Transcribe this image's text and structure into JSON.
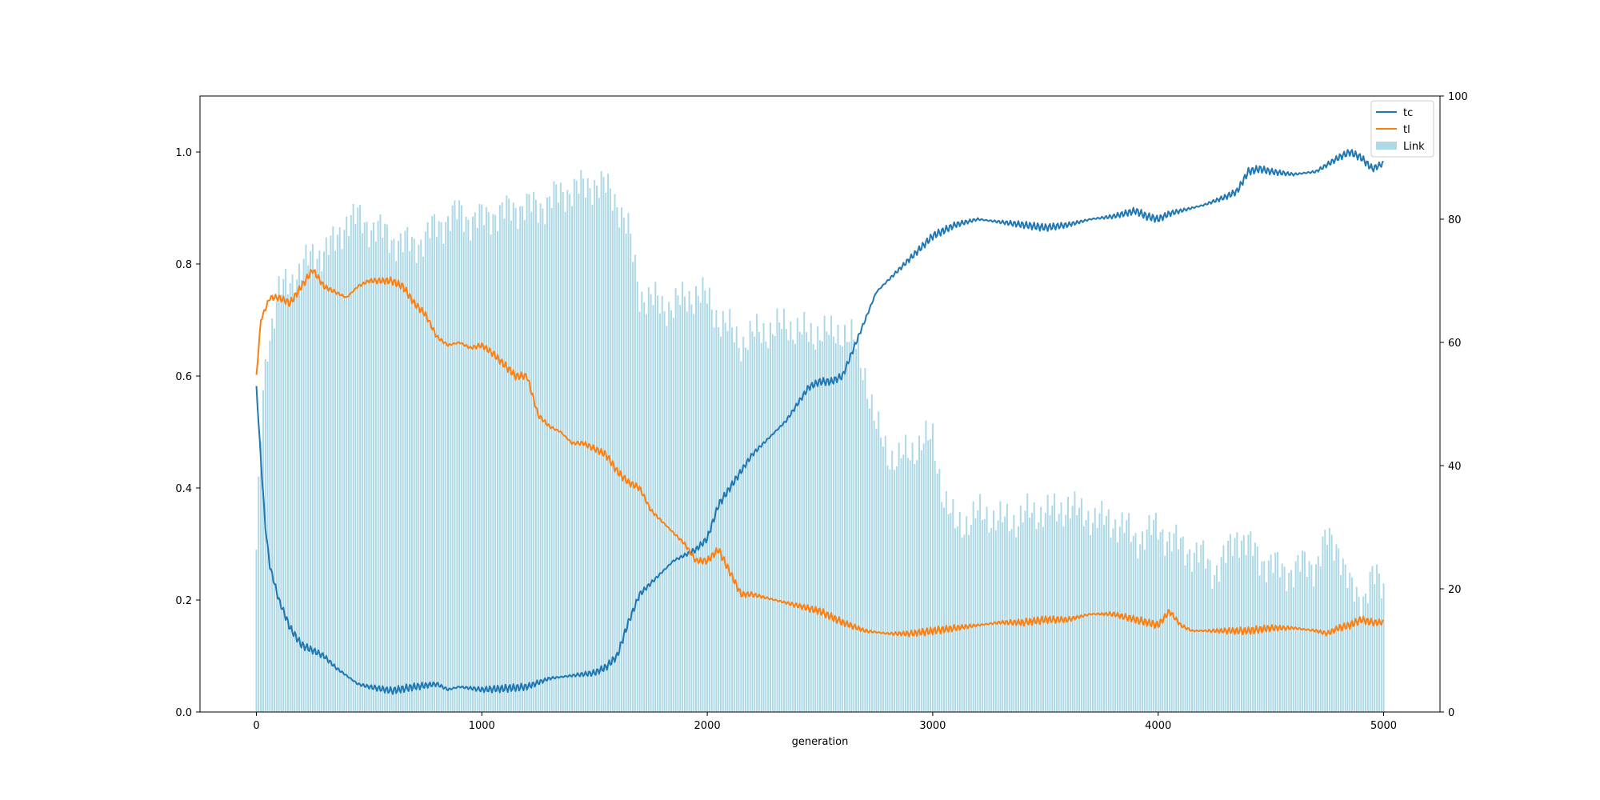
{
  "chart_data": {
    "type": "line",
    "xlabel": "generation",
    "xlim": [
      -250,
      5250
    ],
    "x_ticks": [
      0,
      1000,
      2000,
      3000,
      4000,
      5000
    ],
    "ylim": [
      0,
      1.1
    ],
    "y_ticks": [
      0.0,
      0.2,
      0.4,
      0.6,
      0.8,
      1.0
    ],
    "y_tick_labels": [
      "0.0",
      "0.2",
      "0.4",
      "0.6",
      "0.8",
      "1.0"
    ],
    "y2lim": [
      0,
      100
    ],
    "y2_ticks": [
      0,
      20,
      40,
      60,
      80,
      100
    ],
    "legend_position": "upper right",
    "series": [
      {
        "name": "tc",
        "axis": "left",
        "kind": "line",
        "color": "#1f77b4",
        "points": [
          [
            0,
            0.58
          ],
          [
            20,
            0.45
          ],
          [
            40,
            0.33
          ],
          [
            60,
            0.26
          ],
          [
            100,
            0.2
          ],
          [
            150,
            0.15
          ],
          [
            200,
            0.12
          ],
          [
            250,
            0.11
          ],
          [
            300,
            0.1
          ],
          [
            350,
            0.08
          ],
          [
            400,
            0.065
          ],
          [
            450,
            0.05
          ],
          [
            500,
            0.045
          ],
          [
            600,
            0.038
          ],
          [
            700,
            0.045
          ],
          [
            800,
            0.05
          ],
          [
            850,
            0.04
          ],
          [
            900,
            0.045
          ],
          [
            1000,
            0.04
          ],
          [
            1100,
            0.042
          ],
          [
            1200,
            0.045
          ],
          [
            1300,
            0.06
          ],
          [
            1400,
            0.065
          ],
          [
            1500,
            0.07
          ],
          [
            1550,
            0.08
          ],
          [
            1600,
            0.1
          ],
          [
            1650,
            0.16
          ],
          [
            1700,
            0.21
          ],
          [
            1750,
            0.23
          ],
          [
            1800,
            0.25
          ],
          [
            1850,
            0.27
          ],
          [
            1900,
            0.28
          ],
          [
            1950,
            0.29
          ],
          [
            2000,
            0.31
          ],
          [
            2050,
            0.37
          ],
          [
            2100,
            0.4
          ],
          [
            2150,
            0.43
          ],
          [
            2200,
            0.46
          ],
          [
            2250,
            0.48
          ],
          [
            2300,
            0.5
          ],
          [
            2350,
            0.52
          ],
          [
            2400,
            0.55
          ],
          [
            2450,
            0.58
          ],
          [
            2500,
            0.59
          ],
          [
            2550,
            0.59
          ],
          [
            2600,
            0.6
          ],
          [
            2650,
            0.65
          ],
          [
            2700,
            0.7
          ],
          [
            2750,
            0.75
          ],
          [
            2800,
            0.77
          ],
          [
            2850,
            0.79
          ],
          [
            2900,
            0.81
          ],
          [
            2950,
            0.83
          ],
          [
            3000,
            0.85
          ],
          [
            3050,
            0.86
          ],
          [
            3100,
            0.87
          ],
          [
            3200,
            0.88
          ],
          [
            3300,
            0.875
          ],
          [
            3400,
            0.87
          ],
          [
            3500,
            0.865
          ],
          [
            3600,
            0.87
          ],
          [
            3700,
            0.88
          ],
          [
            3800,
            0.885
          ],
          [
            3850,
            0.89
          ],
          [
            3900,
            0.895
          ],
          [
            3950,
            0.885
          ],
          [
            4000,
            0.88
          ],
          [
            4050,
            0.89
          ],
          [
            4100,
            0.895
          ],
          [
            4200,
            0.905
          ],
          [
            4300,
            0.92
          ],
          [
            4350,
            0.93
          ],
          [
            4400,
            0.965
          ],
          [
            4450,
            0.97
          ],
          [
            4500,
            0.965
          ],
          [
            4600,
            0.96
          ],
          [
            4700,
            0.965
          ],
          [
            4800,
            0.99
          ],
          [
            4850,
            1.0
          ],
          [
            4900,
            0.99
          ],
          [
            4950,
            0.97
          ],
          [
            5000,
            0.98
          ]
        ]
      },
      {
        "name": "tl",
        "axis": "left",
        "kind": "line",
        "color": "#ff7f0e",
        "points": [
          [
            0,
            0.6
          ],
          [
            20,
            0.7
          ],
          [
            40,
            0.72
          ],
          [
            60,
            0.74
          ],
          [
            100,
            0.74
          ],
          [
            150,
            0.73
          ],
          [
            200,
            0.76
          ],
          [
            250,
            0.79
          ],
          [
            300,
            0.76
          ],
          [
            350,
            0.75
          ],
          [
            400,
            0.74
          ],
          [
            450,
            0.76
          ],
          [
            500,
            0.77
          ],
          [
            600,
            0.77
          ],
          [
            650,
            0.76
          ],
          [
            700,
            0.73
          ],
          [
            750,
            0.71
          ],
          [
            800,
            0.67
          ],
          [
            850,
            0.655
          ],
          [
            900,
            0.66
          ],
          [
            950,
            0.65
          ],
          [
            1000,
            0.655
          ],
          [
            1050,
            0.64
          ],
          [
            1100,
            0.62
          ],
          [
            1150,
            0.6
          ],
          [
            1200,
            0.6
          ],
          [
            1250,
            0.53
          ],
          [
            1300,
            0.51
          ],
          [
            1350,
            0.5
          ],
          [
            1400,
            0.48
          ],
          [
            1450,
            0.48
          ],
          [
            1500,
            0.47
          ],
          [
            1550,
            0.46
          ],
          [
            1600,
            0.43
          ],
          [
            1650,
            0.41
          ],
          [
            1700,
            0.4
          ],
          [
            1750,
            0.36
          ],
          [
            1800,
            0.34
          ],
          [
            1850,
            0.32
          ],
          [
            1900,
            0.3
          ],
          [
            1950,
            0.27
          ],
          [
            2000,
            0.27
          ],
          [
            2050,
            0.29
          ],
          [
            2100,
            0.25
          ],
          [
            2150,
            0.21
          ],
          [
            2200,
            0.21
          ],
          [
            2300,
            0.2
          ],
          [
            2400,
            0.19
          ],
          [
            2500,
            0.18
          ],
          [
            2600,
            0.16
          ],
          [
            2700,
            0.145
          ],
          [
            2800,
            0.14
          ],
          [
            2900,
            0.14
          ],
          [
            3000,
            0.145
          ],
          [
            3100,
            0.15
          ],
          [
            3200,
            0.155
          ],
          [
            3300,
            0.16
          ],
          [
            3400,
            0.16
          ],
          [
            3500,
            0.165
          ],
          [
            3600,
            0.165
          ],
          [
            3700,
            0.175
          ],
          [
            3800,
            0.175
          ],
          [
            3900,
            0.165
          ],
          [
            4000,
            0.155
          ],
          [
            4050,
            0.18
          ],
          [
            4100,
            0.155
          ],
          [
            4150,
            0.145
          ],
          [
            4200,
            0.145
          ],
          [
            4300,
            0.145
          ],
          [
            4400,
            0.145
          ],
          [
            4500,
            0.15
          ],
          [
            4600,
            0.15
          ],
          [
            4700,
            0.145
          ],
          [
            4750,
            0.14
          ],
          [
            4800,
            0.15
          ],
          [
            4850,
            0.155
          ],
          [
            4900,
            0.165
          ],
          [
            4950,
            0.16
          ],
          [
            5000,
            0.16
          ]
        ]
      },
      {
        "name": "Link",
        "axis": "right",
        "kind": "bar",
        "color": "#add8e6",
        "points": [
          [
            0,
            25
          ],
          [
            25,
            50
          ],
          [
            50,
            60
          ],
          [
            100,
            68
          ],
          [
            150,
            70
          ],
          [
            200,
            72
          ],
          [
            250,
            74
          ],
          [
            300,
            75
          ],
          [
            350,
            76
          ],
          [
            400,
            80
          ],
          [
            450,
            80
          ],
          [
            500,
            79
          ],
          [
            550,
            78
          ],
          [
            600,
            77
          ],
          [
            650,
            76
          ],
          [
            700,
            76
          ],
          [
            750,
            77
          ],
          [
            800,
            79
          ],
          [
            850,
            80
          ],
          [
            900,
            81
          ],
          [
            950,
            80
          ],
          [
            1000,
            80
          ],
          [
            1050,
            81
          ],
          [
            1100,
            81
          ],
          [
            1150,
            82
          ],
          [
            1200,
            82
          ],
          [
            1250,
            82
          ],
          [
            1300,
            83
          ],
          [
            1350,
            84
          ],
          [
            1400,
            85
          ],
          [
            1450,
            85
          ],
          [
            1500,
            86
          ],
          [
            1550,
            85
          ],
          [
            1600,
            83
          ],
          [
            1650,
            78
          ],
          [
            1700,
            68
          ],
          [
            1750,
            67
          ],
          [
            1800,
            66
          ],
          [
            1850,
            66
          ],
          [
            1900,
            67
          ],
          [
            1950,
            68
          ],
          [
            2000,
            67
          ],
          [
            2050,
            64
          ],
          [
            2100,
            62
          ],
          [
            2150,
            60
          ],
          [
            2200,
            61
          ],
          [
            2250,
            62
          ],
          [
            2300,
            62
          ],
          [
            2350,
            63
          ],
          [
            2400,
            62
          ],
          [
            2450,
            61
          ],
          [
            2500,
            62
          ],
          [
            2550,
            61
          ],
          [
            2600,
            62
          ],
          [
            2650,
            60
          ],
          [
            2700,
            55
          ],
          [
            2750,
            46
          ],
          [
            2800,
            42
          ],
          [
            2850,
            41
          ],
          [
            2900,
            42
          ],
          [
            2950,
            44
          ],
          [
            3000,
            44
          ],
          [
            3050,
            35
          ],
          [
            3100,
            30
          ],
          [
            3150,
            31
          ],
          [
            3200,
            32
          ],
          [
            3250,
            32
          ],
          [
            3300,
            31
          ],
          [
            3350,
            31
          ],
          [
            3400,
            32
          ],
          [
            3450,
            32
          ],
          [
            3500,
            33
          ],
          [
            3550,
            32
          ],
          [
            3600,
            34
          ],
          [
            3650,
            32
          ],
          [
            3700,
            32
          ],
          [
            3750,
            31
          ],
          [
            3800,
            31
          ],
          [
            3850,
            30
          ],
          [
            3900,
            28
          ],
          [
            3950,
            29
          ],
          [
            4000,
            30
          ],
          [
            4050,
            28
          ],
          [
            4100,
            27
          ],
          [
            4150,
            26
          ],
          [
            4200,
            25
          ],
          [
            4250,
            23
          ],
          [
            4300,
            25
          ],
          [
            4350,
            29
          ],
          [
            4400,
            27
          ],
          [
            4450,
            25
          ],
          [
            4500,
            24
          ],
          [
            4550,
            23
          ],
          [
            4600,
            23
          ],
          [
            4650,
            24
          ],
          [
            4700,
            24
          ],
          [
            4750,
            28
          ],
          [
            4800,
            27
          ],
          [
            4850,
            20
          ],
          [
            4900,
            18
          ],
          [
            4950,
            22
          ],
          [
            5000,
            20
          ]
        ]
      }
    ]
  }
}
